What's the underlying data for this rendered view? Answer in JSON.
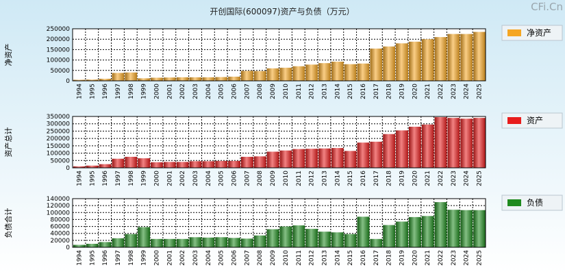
{
  "title": "开创国际(600097)资产与负债（万元）",
  "watermark": "CFi.Cn",
  "colors": {
    "equity": "#f5a623",
    "assets": "#e81c1c",
    "liabilities": "#1f8a1f"
  },
  "chart_data": [
    {
      "type": "bar",
      "ylabel": "净资产",
      "legend": "净资产",
      "ylim": [
        0,
        250000
      ],
      "yticks": [
        0,
        50000,
        100000,
        150000,
        200000,
        250000
      ],
      "categories": [
        "1994",
        "1995",
        "1996",
        "1997",
        "1998",
        "1999",
        "2000",
        "2001",
        "2002",
        "2003",
        "2004",
        "2005",
        "2006",
        "2007",
        "2008",
        "2009",
        "2010",
        "2011",
        "2012",
        "2013",
        "2014",
        "2015",
        "2016",
        "2017",
        "2018",
        "2019",
        "2020",
        "2021",
        "2022",
        "2023",
        "2024",
        "2025"
      ],
      "values": [
        5000,
        6000,
        10000,
        38000,
        40000,
        12000,
        15000,
        16000,
        17000,
        17000,
        17000,
        18000,
        20000,
        48000,
        47000,
        60000,
        63000,
        70000,
        78000,
        85000,
        92000,
        80000,
        83000,
        155000,
        165000,
        180000,
        188000,
        200000,
        210000,
        225000,
        225000,
        235000
      ]
    },
    {
      "type": "bar",
      "ylabel": "资产总计",
      "legend": "资产",
      "ylim": [
        0,
        350000
      ],
      "yticks": [
        0,
        50000,
        100000,
        150000,
        200000,
        250000,
        300000,
        350000
      ],
      "categories": [
        "1994",
        "1995",
        "1996",
        "1997",
        "1998",
        "1999",
        "2000",
        "2001",
        "2002",
        "2003",
        "2004",
        "2005",
        "2006",
        "2007",
        "2008",
        "2009",
        "2010",
        "2011",
        "2012",
        "2013",
        "2014",
        "2015",
        "2016",
        "2017",
        "2018",
        "2019",
        "2020",
        "2021",
        "2022",
        "2023",
        "2024",
        "2025"
      ],
      "values": [
        10000,
        15000,
        25000,
        62000,
        75000,
        65000,
        38000,
        40000,
        40000,
        45000,
        45000,
        47000,
        47000,
        75000,
        78000,
        110000,
        118000,
        128000,
        130000,
        132000,
        135000,
        115000,
        172000,
        178000,
        230000,
        255000,
        280000,
        295000,
        345000,
        340000,
        335000,
        340000
      ]
    },
    {
      "type": "bar",
      "ylabel": "负债合计",
      "legend": "负债",
      "ylim": [
        0,
        140000
      ],
      "yticks": [
        0,
        20000,
        40000,
        60000,
        80000,
        100000,
        120000,
        140000
      ],
      "categories": [
        "1994",
        "1995",
        "1996",
        "1997",
        "1998",
        "1999",
        "2000",
        "2001",
        "2002",
        "2003",
        "2004",
        "2005",
        "2006",
        "2007",
        "2008",
        "2009",
        "2010",
        "2011",
        "2012",
        "2013",
        "2014",
        "2015",
        "2016",
        "2017",
        "2018",
        "2019",
        "2020",
        "2021",
        "2022",
        "2023",
        "2024",
        "2025"
      ],
      "values": [
        7000,
        10000,
        15000,
        26000,
        38000,
        58000,
        24000,
        24000,
        24000,
        29000,
        28000,
        29000,
        27000,
        25000,
        34000,
        52000,
        60000,
        63000,
        53000,
        45000,
        43000,
        38000,
        88000,
        24000,
        64000,
        74000,
        87000,
        90000,
        130000,
        108000,
        107000,
        107000
      ]
    }
  ]
}
